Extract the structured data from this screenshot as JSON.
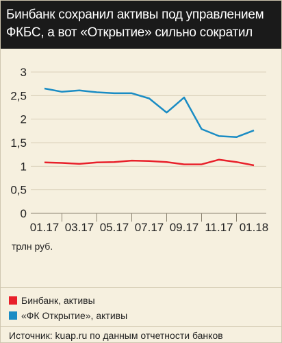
{
  "title": "Бинбанк сохранил активы под управлением ФКБС, а вот «Открытие» сильно сократил",
  "colors": {
    "header_bg": "#1a1a1a",
    "background": "#f6f0df",
    "grid": "#d9cfb8",
    "axis_text": "#222222"
  },
  "unit_label": "трлн руб.",
  "source": "Источник: kuap.ru по данным отчетности банков",
  "chart_data": {
    "type": "line",
    "x": [
      "01.17",
      "02.17",
      "03.17",
      "04.17",
      "05.17",
      "06.17",
      "07.17",
      "08.17",
      "09.17",
      "10.17",
      "11.17",
      "12.17",
      "01.18"
    ],
    "tick_labels": [
      "01.17",
      "03.17",
      "05.17",
      "07.17",
      "09.17",
      "11.17",
      "01.18"
    ],
    "yticks": [
      "0",
      "0,5",
      "1",
      "1,5",
      "2",
      "2,5",
      "3"
    ],
    "ylim": [
      0,
      3
    ],
    "grid": true,
    "legend_position": "bottom",
    "series": [
      {
        "name": "Бинбанк, активы",
        "color": "#e8202a",
        "values": [
          1.08,
          1.07,
          1.05,
          1.08,
          1.09,
          1.12,
          1.11,
          1.09,
          1.04,
          1.04,
          1.14,
          1.09,
          1.02
        ]
      },
      {
        "name": "«ФК Открытие», активы",
        "color": "#1a8cc4",
        "values": [
          2.65,
          2.58,
          2.61,
          2.57,
          2.55,
          2.55,
          2.44,
          2.14,
          2.46,
          1.79,
          1.64,
          1.62,
          1.76
        ]
      }
    ]
  }
}
